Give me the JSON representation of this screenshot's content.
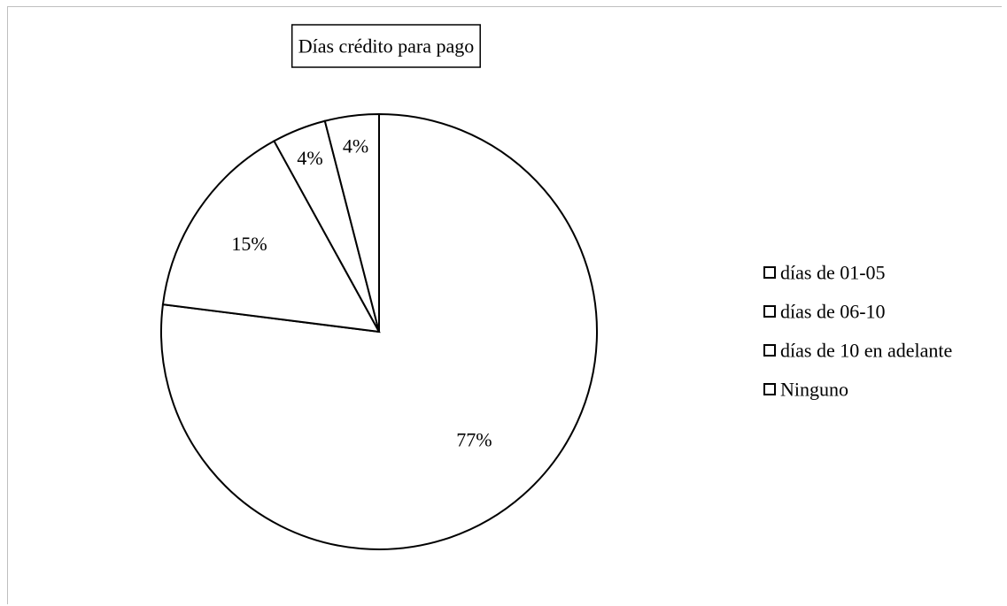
{
  "chart_data": {
    "type": "pie",
    "title": "Días crédito para pago",
    "categories": [
      "días de 01-05",
      "días de 06-10",
      "días de 10 en adelante",
      "Ninguno"
    ],
    "values": [
      77,
      15,
      4,
      4
    ],
    "data_labels": [
      "77%",
      "15%",
      "4%",
      "4%"
    ],
    "legend_position": "right",
    "start_angle": "12 o'clock",
    "direction": "clockwise",
    "fill_color": "#ffffff",
    "stroke_color": "#000000"
  }
}
